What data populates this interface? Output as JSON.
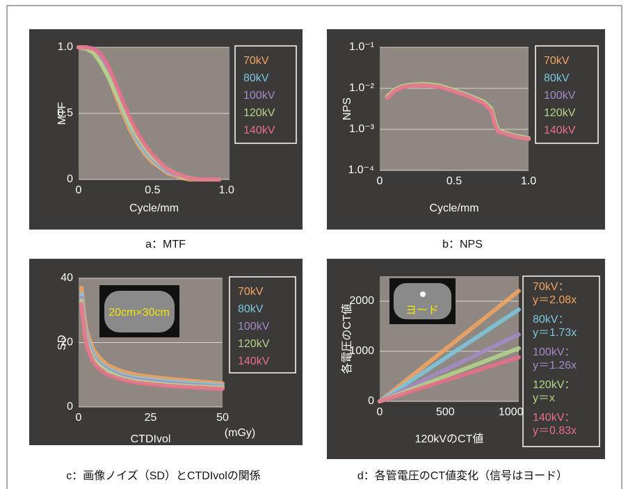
{
  "chart_data": [
    {
      "type": "line",
      "caption": "a：MTF",
      "x_label": "Cycle/mm",
      "y_label": "MTF",
      "x": [
        0,
        0.05,
        0.1,
        0.15,
        0.2,
        0.25,
        0.3,
        0.35,
        0.4,
        0.45,
        0.5,
        0.55,
        0.6,
        0.65,
        0.7,
        0.75,
        0.8,
        0.85,
        0.9,
        0.95
      ],
      "xlim": [
        0,
        1.02
      ],
      "xticks": [
        0,
        0.5,
        {
          "value": 1,
          "label": "1.0"
        }
      ],
      "ylim": [
        0,
        1
      ],
      "yticks": [
        0,
        0.5,
        {
          "value": 1,
          "label": "1.0"
        }
      ],
      "grid": true,
      "series": [
        {
          "name": "70kV",
          "color": "#f5a560",
          "values": [
            1,
            1,
            0.97,
            0.9,
            0.79,
            0.64,
            0.5,
            0.37,
            0.27,
            0.19,
            0.13,
            0.09,
            0.05,
            0.03,
            0.01,
            0,
            0,
            0,
            0,
            0
          ]
        },
        {
          "name": "80kV",
          "color": "#7cc8dc",
          "values": [
            1,
            1,
            0.98,
            0.92,
            0.81,
            0.67,
            0.53,
            0.4,
            0.29,
            0.21,
            0.15,
            0.1,
            0.06,
            0.04,
            0.02,
            0.01,
            0,
            0,
            0,
            0
          ]
        },
        {
          "name": "100kV",
          "color": "#a58bc8",
          "values": [
            1,
            1,
            0.98,
            0.93,
            0.83,
            0.69,
            0.55,
            0.42,
            0.31,
            0.23,
            0.16,
            0.11,
            0.07,
            0.04,
            0.02,
            0.01,
            0,
            0,
            0,
            0
          ]
        },
        {
          "name": "120kV",
          "color": "#b5d68a",
          "values": [
            1,
            0.99,
            0.96,
            0.88,
            0.78,
            0.66,
            0.54,
            0.42,
            0.32,
            0.24,
            0.17,
            0.12,
            0.08,
            0.05,
            0.02,
            0.01,
            0,
            0,
            0,
            0
          ]
        },
        {
          "name": "140kV",
          "color": "#e8708a",
          "values": [
            1,
            1,
            0.99,
            0.95,
            0.86,
            0.73,
            0.59,
            0.46,
            0.35,
            0.26,
            0.19,
            0.13,
            0.08,
            0.05,
            0.03,
            0.01,
            0,
            0,
            0,
            0
          ]
        }
      ]
    },
    {
      "type": "line",
      "caption": "b：NPS",
      "x_label": "Cycle/mm",
      "y_label": "NPS",
      "log_y": true,
      "x": [
        0.05,
        0.1,
        0.15,
        0.2,
        0.3,
        0.4,
        0.5,
        0.6,
        0.7,
        0.75,
        0.78,
        0.8,
        0.85,
        0.9,
        0.95,
        1.0
      ],
      "xlim": [
        0,
        1
      ],
      "xticks": [
        0,
        0.5,
        {
          "value": 1,
          "label": "1.0"
        }
      ],
      "ylim": [
        0.0001,
        0.1
      ],
      "yticks": [
        {
          "value": 0.1,
          "label": "1.0⁻¹"
        },
        {
          "value": 0.01,
          "label": "1.0⁻²"
        },
        {
          "value": 0.001,
          "label": "1.0⁻³"
        },
        {
          "value": 0.0001,
          "label": "1.0⁻⁴"
        }
      ],
      "grid": true,
      "series": [
        {
          "name": "70kV",
          "color": "#f5a560",
          "values": [
            0.0062,
            0.009,
            0.011,
            0.012,
            0.0125,
            0.0115,
            0.0088,
            0.0066,
            0.0046,
            0.0031,
            0.0013,
            0.0009,
            0.0008,
            0.0007,
            0.00065,
            0.0006
          ]
        },
        {
          "name": "80kV",
          "color": "#7cc8dc",
          "values": [
            0.006,
            0.0088,
            0.0108,
            0.0118,
            0.0122,
            0.0112,
            0.0086,
            0.0065,
            0.0045,
            0.003,
            0.0012,
            0.0009,
            0.0008,
            0.0007,
            0.00064,
            0.0006
          ]
        },
        {
          "name": "100kV",
          "color": "#a58bc8",
          "values": [
            0.0058,
            0.0087,
            0.0106,
            0.0116,
            0.012,
            0.011,
            0.0085,
            0.0064,
            0.0044,
            0.0029,
            0.0012,
            0.00088,
            0.00078,
            0.00069,
            0.00063,
            0.00059
          ]
        },
        {
          "name": "120kV",
          "color": "#b5d68a",
          "values": [
            0.0063,
            0.0092,
            0.0112,
            0.0122,
            0.0128,
            0.0117,
            0.009,
            0.0067,
            0.0047,
            0.0032,
            0.0013,
            0.00092,
            0.00082,
            0.00072,
            0.00066,
            0.00061
          ]
        },
        {
          "name": "140kV",
          "color": "#e8708a",
          "values": [
            0.0057,
            0.0086,
            0.0105,
            0.0115,
            0.0119,
            0.0109,
            0.0084,
            0.0063,
            0.0043,
            0.0028,
            0.0011,
            0.00087,
            0.00077,
            0.00068,
            0.00062,
            0.00058
          ]
        }
      ]
    },
    {
      "type": "line",
      "caption": "c：画像ノイズ（SD）とCTDIvolの関係",
      "x_label": "CTDIvol",
      "y_label": "SD",
      "x_unit": "(mGy)",
      "inset_label": "20cm×30cm",
      "x": [
        1,
        2,
        3,
        5,
        7,
        10,
        15,
        20,
        30,
        40,
        50
      ],
      "xlim": [
        0,
        50
      ],
      "xticks": [
        0,
        25,
        50
      ],
      "ylim": [
        0,
        40
      ],
      "yticks": [
        0,
        20,
        40
      ],
      "grid": true,
      "series": [
        {
          "name": "70kV",
          "color": "#f5a560",
          "values": [
            37,
            28,
            23,
            18,
            15.5,
            13,
            11,
            10,
            8.8,
            8,
            7.3
          ]
        },
        {
          "name": "80kV",
          "color": "#7cc8dc",
          "values": [
            35,
            26,
            21.5,
            16.5,
            14,
            12,
            10,
            9,
            8,
            7.3,
            6.7
          ]
        },
        {
          "name": "100kV",
          "color": "#a58bc8",
          "values": [
            34,
            25,
            20.5,
            15.5,
            13.5,
            11.5,
            9.5,
            8.5,
            7.5,
            6.8,
            6.3
          ]
        },
        {
          "name": "120kV",
          "color": "#b5d68a",
          "values": [
            33,
            24,
            19.5,
            15,
            13,
            11,
            9,
            8,
            7,
            6.4,
            6
          ]
        },
        {
          "name": "140kV",
          "color": "#e8708a",
          "values": [
            32,
            23,
            18.5,
            14,
            12,
            10,
            8.5,
            7.5,
            6.6,
            6,
            5.6
          ]
        }
      ]
    },
    {
      "type": "line",
      "caption": "d：各管電圧のCT値変化（信号はヨード）",
      "x_label": "120kVのCT値",
      "y_label": "各電圧のCT値",
      "inset_label": "ヨード",
      "x": [
        0,
        1060
      ],
      "xlim": [
        0,
        1060
      ],
      "xticks": [
        0,
        500,
        1000
      ],
      "ylim": [
        0,
        2500
      ],
      "yticks": [
        0,
        1000,
        2000
      ],
      "grid": true,
      "series": [
        {
          "name": "70kV：",
          "equation": "y＝2.08x",
          "color": "#f5a560",
          "values": [
            0,
            2205
          ]
        },
        {
          "name": "80kV：",
          "equation": "y＝1.73x",
          "color": "#7cc8dc",
          "values": [
            0,
            1834
          ]
        },
        {
          "name": "100kV：",
          "equation": "y＝1.26x",
          "color": "#a58bc8",
          "values": [
            0,
            1336
          ]
        },
        {
          "name": "120kV：",
          "equation": "y＝x",
          "color": "#b5d68a",
          "values": [
            0,
            1060
          ]
        },
        {
          "name": "140kV：",
          "equation": "y＝0.83x",
          "color": "#e8708a",
          "values": [
            0,
            880
          ]
        }
      ]
    }
  ]
}
